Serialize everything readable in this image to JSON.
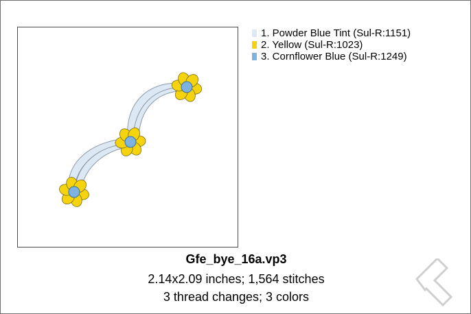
{
  "design": {
    "filename": "Gfe_bye_16a.vp3",
    "size_stitches": "2.14x2.09 inches; 1,564 stitches",
    "changes_colors": "3 thread changes; 3 colors"
  },
  "threads": [
    {
      "label": "1.  Powder Blue Tint (Sul-R:1151)",
      "color": "#dce9f5"
    },
    {
      "label": "2.  Yellow (Sul-R:1023)",
      "color": "#f5d40f"
    },
    {
      "label": "3.  Cornflower Blue (Sul-R:1249)",
      "color": "#7db3e0"
    }
  ],
  "colors": {
    "stem": "#dce9f5",
    "stem_edge": "#8a97a6",
    "petal": "#f5d40f",
    "petal_edge": "#7a6a10",
    "center": "#7db3e0",
    "center_edge": "#3f6f98",
    "watermark": "#cfcfcf"
  }
}
